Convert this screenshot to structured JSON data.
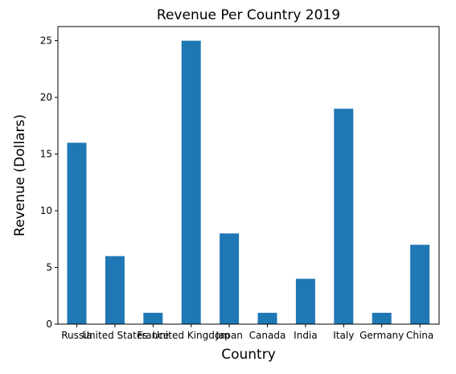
{
  "chart_data": {
    "type": "bar",
    "title": "Revenue Per Country 2019",
    "xlabel": "Country",
    "ylabel": "Revenue (Dollars)",
    "categories": [
      "Russia",
      "United States",
      "France",
      "United Kingdom",
      "Japan",
      "Canada",
      "India",
      "Italy",
      "Germany",
      "China"
    ],
    "values": [
      16,
      6,
      1,
      25,
      8,
      1,
      4,
      19,
      1,
      7
    ],
    "ylim": [
      0,
      26.25
    ],
    "yticks": [
      0,
      5,
      10,
      15,
      20,
      25
    ],
    "grid": false,
    "legend": "none",
    "bar_color": "#1f77b4"
  }
}
